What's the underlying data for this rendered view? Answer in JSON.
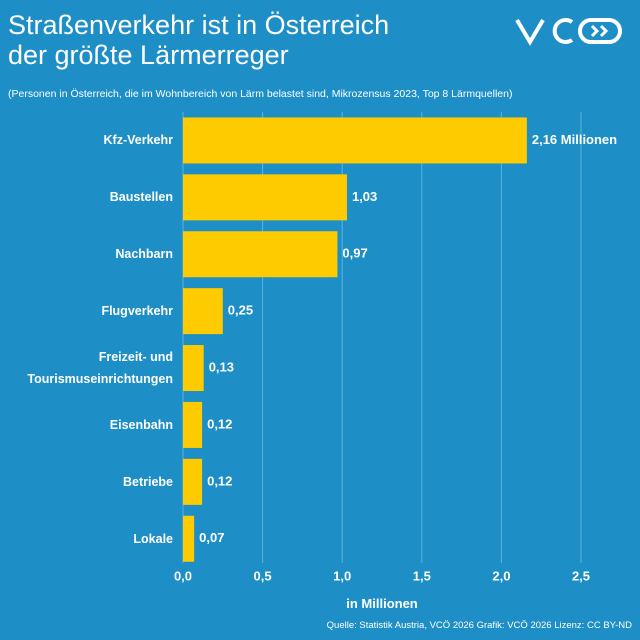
{
  "chart_data": {
    "type": "hbar",
    "title": "Straßenverkehr ist in Österreich der größte Lärmerreger",
    "subtitle": "(Personen in Österreich, die im Wohnbereich von Lärm belastet sind, Mikrozensus 2023, Top 8 Lärmquellen)",
    "x_label": "in Millionen",
    "source": "Quelle: Statistik Austria, VCÖ 2026 Grafik: VCÖ 2026 Lizenz: CC BY-ND",
    "categories": [
      "Kfz-Verkehr",
      "Baustellen",
      "Nachbarn",
      "Flugverkehr",
      "Freizeit- und Tourismuseinrichtungen",
      "Eisenbahn",
      "Betriebe",
      "Lokale"
    ],
    "values": [
      2.16,
      1.03,
      0.97,
      0.25,
      0.13,
      0.12,
      0.12,
      0.07
    ],
    "value_labels": [
      "2,16 Millionen",
      "1,03",
      "0,97",
      "0,25",
      "0,13",
      "0,12",
      "0,12",
      "0,07"
    ],
    "color": "#fdcb00",
    "xlim": [
      0,
      2.5
    ],
    "xticks": [
      {
        "value": 0,
        "label": "0,0"
      },
      {
        "value": 0.5,
        "label": "0,5"
      },
      {
        "value": 1,
        "label": "1,0"
      },
      {
        "value": 1.5,
        "label": "1,5"
      },
      {
        "value": 2,
        "label": "2,0"
      },
      {
        "value": 2.5,
        "label": "2,5"
      }
    ],
    "grid": true
  }
}
